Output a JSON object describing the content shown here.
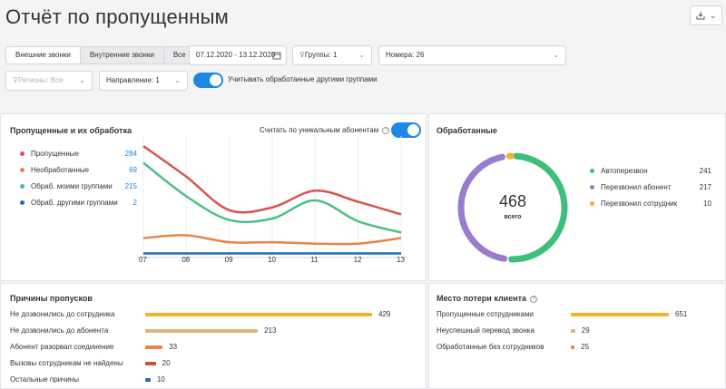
{
  "page_title": "Отчёт по пропущенным",
  "export_icon": "download-icon",
  "tabs": [
    "Внешние звонки",
    "Внутренние звонки",
    "Все"
  ],
  "filters": {
    "date_range": "07.12.2020 - 13.12.2020",
    "groups": "Группы: 1",
    "numbers": "Номера: 26",
    "regions": "Регионы: Все",
    "direction": "Направление: 1",
    "count_processed_label": "Учитывать обработанные другими группами"
  },
  "missed_card": {
    "title": "Пропущенные и их обработка",
    "unique_label": "Считать по уникальным абонентам",
    "legend": [
      {
        "label": "Пропущенные",
        "value": "284",
        "color": "#d9534f"
      },
      {
        "label": "Необработанные",
        "value": "69",
        "color": "#e8844a"
      },
      {
        "label": "Обраб. моими группами",
        "value": "215",
        "color": "#4cbf86"
      },
      {
        "label": "Обраб. другими группами",
        "value": "2",
        "color": "#1e6fb3"
      }
    ]
  },
  "chart_data": {
    "type": "line",
    "x": [
      "07",
      "08",
      "09",
      "10",
      "11",
      "12",
      "13"
    ],
    "series": [
      {
        "name": "Пропущенные",
        "color": "#d9534f",
        "values": [
          78,
          56,
          32,
          34,
          46,
          38,
          29
        ]
      },
      {
        "name": "Обраб. моими группами",
        "color": "#4cbf86",
        "values": [
          66,
          42,
          25,
          26,
          39,
          24,
          16
        ]
      },
      {
        "name": "Необработанные",
        "color": "#e8844a",
        "values": [
          12,
          14,
          9,
          9,
          8,
          8,
          12
        ]
      },
      {
        "name": "Обраб. другими группами",
        "color": "#1e6fb3",
        "values": [
          1,
          1,
          1,
          1,
          1,
          1,
          1
        ]
      }
    ],
    "ylim": [
      0,
      80
    ],
    "grid": true
  },
  "processed_card": {
    "title": "Обработанные",
    "total": "468",
    "total_label": "всего",
    "legend": [
      {
        "label": "Автоперезвон",
        "value": "241",
        "color": "#3dbf7a"
      },
      {
        "label": "Перезвонил абонент",
        "value": "217",
        "color": "#9b7bd0"
      },
      {
        "label": "Перезвонил сотрудник",
        "value": "10",
        "color": "#f0b429"
      }
    ]
  },
  "reasons_card": {
    "title": "Причины пропусков",
    "rows": [
      {
        "label": "Не дозвонились до сотрудника",
        "value": "429",
        "num": 429,
        "color": "#f0b429"
      },
      {
        "label": "Не дозвонились до абонента",
        "value": "213",
        "num": 213,
        "color": "#d9b67a"
      },
      {
        "label": "Абонент разорвал соединение",
        "value": "33",
        "num": 33,
        "color": "#e8844a"
      },
      {
        "label": "Вызовы сотрудникам не найдены",
        "value": "20",
        "num": 20,
        "color": "#c9503c"
      },
      {
        "label": "Остальные причины",
        "value": "10",
        "num": 10,
        "color": "#1e6fb3"
      }
    ]
  },
  "loss_card": {
    "title": "Место потери клиента",
    "rows": [
      {
        "label": "Пропущенные сотрудниками",
        "value": "651",
        "num": 651,
        "color": "#f0b429"
      },
      {
        "label": "Неуспешный перевод звонка",
        "value": "29",
        "num": 29,
        "color": "#d9b67a"
      },
      {
        "label": "Обработанные без сотрудников",
        "value": "25",
        "num": 25,
        "color": "#e8844a"
      }
    ]
  }
}
